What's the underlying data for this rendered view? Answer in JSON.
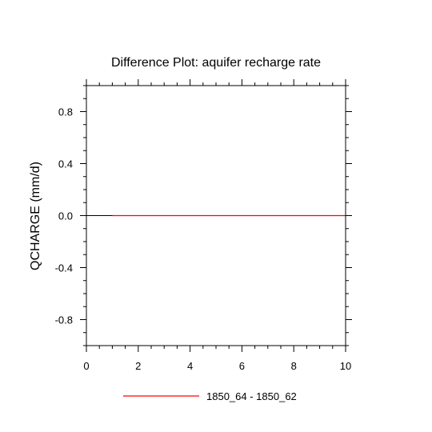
{
  "chart_data": {
    "type": "line",
    "title": "Difference Plot: aquifer recharge rate",
    "xlabel": "",
    "ylabel": "QCHARGE  (mm/d)",
    "xlim": [
      0,
      10
    ],
    "ylim": [
      -1.0,
      1.0
    ],
    "x_ticks": [
      0,
      2,
      4,
      6,
      8,
      10
    ],
    "x_tick_labels": [
      "0",
      "2",
      "4",
      "6",
      "8",
      "10"
    ],
    "x_minor_step": 0.5,
    "y_ticks": [
      -0.8,
      -0.4,
      0.0,
      0.4,
      0.8
    ],
    "y_tick_labels": [
      "-0.8",
      "-0.4",
      "0.0",
      "0.4",
      "0.8"
    ],
    "y_minor_step": 0.1,
    "grid": false,
    "zero_line": true,
    "legend_position": "bottom",
    "series": [
      {
        "name": "1850_64 - 1850_62",
        "color": "#ff0000",
        "x": [
          1,
          2,
          3,
          4,
          5,
          6,
          7,
          8,
          9,
          10
        ],
        "y": [
          0,
          0,
          0,
          0,
          0,
          0,
          0,
          0,
          0,
          0
        ]
      }
    ]
  }
}
